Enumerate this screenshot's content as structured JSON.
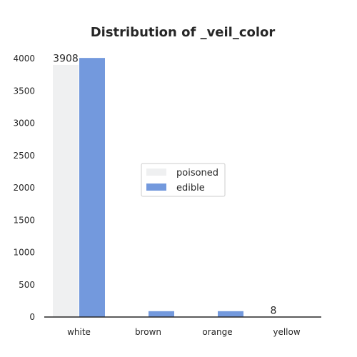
{
  "chart_data": {
    "type": "bar",
    "title": "Distribution of _veil_color",
    "xlabel": "",
    "ylabel": "",
    "categories": [
      "white",
      "brown",
      "orange",
      "yellow"
    ],
    "series": [
      {
        "name": "poisoned",
        "values": [
          3908,
          0,
          0,
          8
        ],
        "color": "#eff0f1"
      },
      {
        "name": "edible",
        "values": [
          4016,
          96,
          96,
          0
        ],
        "color": "#7399dd"
      }
    ],
    "ylim": [
      0,
      4200
    ],
    "yticks": [
      0,
      500,
      1000,
      1500,
      2000,
      2500,
      3000,
      3500,
      4000
    ],
    "data_labels": [
      {
        "category": "white",
        "series": "poisoned",
        "text": "3908"
      },
      {
        "category": "yellow",
        "series": "poisoned",
        "text": "8"
      }
    ],
    "legend_position": "center-right",
    "grid": false
  }
}
